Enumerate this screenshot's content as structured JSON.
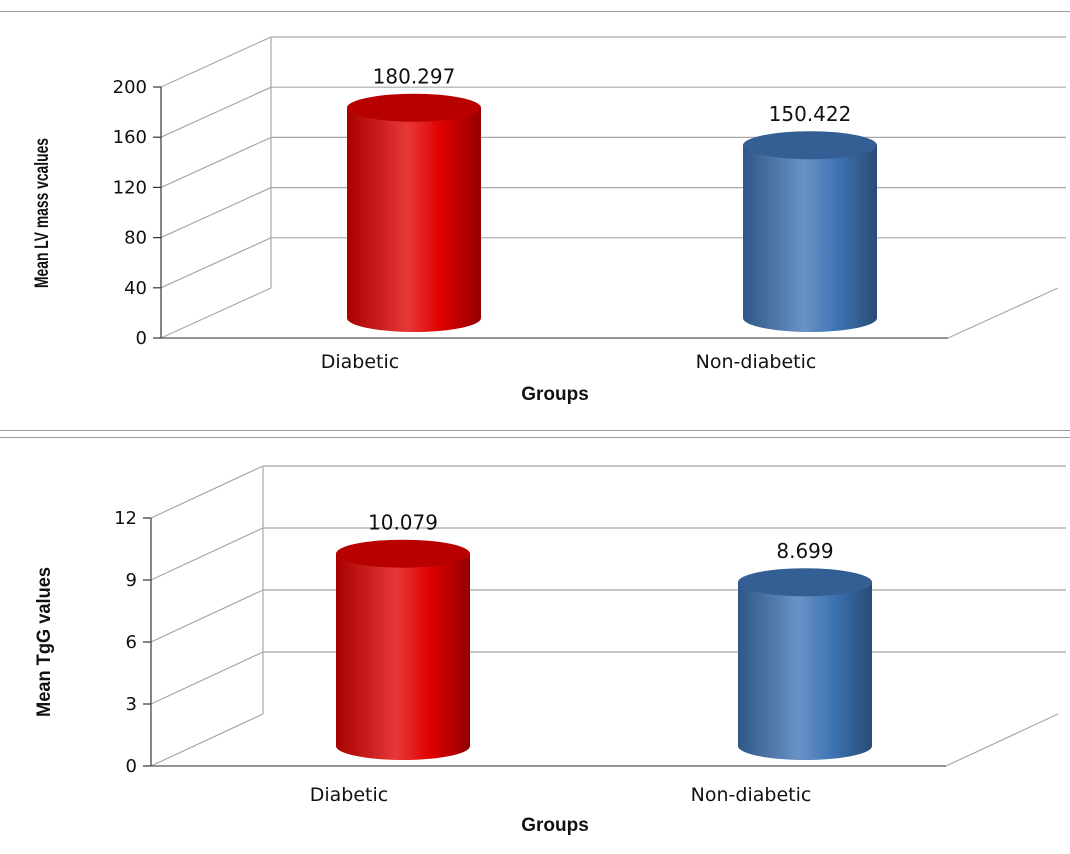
{
  "chart_data": [
    {
      "type": "bar",
      "categories": [
        "Diabetic",
        "Non-diabetic"
      ],
      "values": [
        180.297,
        150.422
      ],
      "value_labels": [
        "180.297",
        "150.422"
      ],
      "xlabel": "Groups",
      "ylabel": "Mean LV mass vcalues",
      "ylim": [
        0,
        200
      ],
      "yticks": [
        "0",
        "40",
        "80",
        "120",
        "160",
        "200"
      ],
      "bar_colors": [
        "#e00000",
        "#3f74b4"
      ],
      "grid": true,
      "style": "3d-cylinder"
    },
    {
      "type": "bar",
      "categories": [
        "Diabetic",
        "Non-diabetic"
      ],
      "values": [
        10.079,
        8.699
      ],
      "value_labels": [
        "10.079",
        "8.699"
      ],
      "xlabel": "Groups",
      "ylabel": "Mean TgG values",
      "ylim": [
        0,
        12
      ],
      "yticks": [
        "0",
        "3",
        "6",
        "9",
        "12"
      ],
      "bar_colors": [
        "#e00000",
        "#3f74b4"
      ],
      "grid": true,
      "style": "3d-cylinder"
    }
  ]
}
